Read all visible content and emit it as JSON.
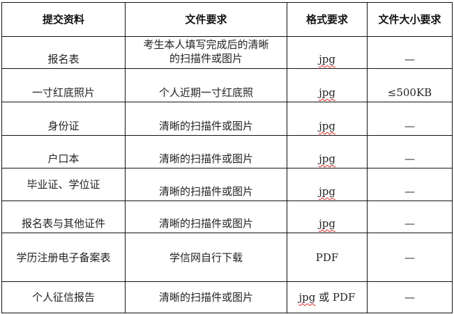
{
  "headers": [
    "提交资料",
    "文件要求",
    "格式要求",
    "文件大小要求"
  ],
  "rows": [
    {
      "material": "报名表",
      "requirement": "考生本人填写完成后的清晰的扫描件或图片",
      "format": "jpg",
      "format_suffix": "",
      "size": "—"
    },
    {
      "material": "一寸红底照片",
      "requirement": "个人近期一寸红底照",
      "format": "jpg",
      "format_suffix": "",
      "size": "≤500KB"
    },
    {
      "material": "身份证",
      "requirement": "清晰的扫描件或图片",
      "format": "jpg",
      "format_suffix": "",
      "size": "—"
    },
    {
      "material": "户口本",
      "requirement": "清晰的扫描件或图片",
      "format": "jpg",
      "format_suffix": "",
      "size": "—"
    },
    {
      "material": "毕业证、学位证",
      "requirement": "清晰的扫描件或图片",
      "format": "jpg",
      "format_suffix": "",
      "size": "—"
    },
    {
      "material": "报名表与其他证件",
      "requirement": "清晰的扫描件或图片",
      "format": "jpg",
      "format_suffix": "",
      "size": "—"
    },
    {
      "material": "学历注册电子备案表",
      "requirement": "学信网自行下载",
      "format": "",
      "format_suffix": "PDF",
      "size": "—"
    },
    {
      "material": "个人征信报告",
      "requirement": "清晰的扫描件或图片",
      "format": "jpg",
      "format_suffix": " 或 PDF",
      "size": "—"
    }
  ]
}
